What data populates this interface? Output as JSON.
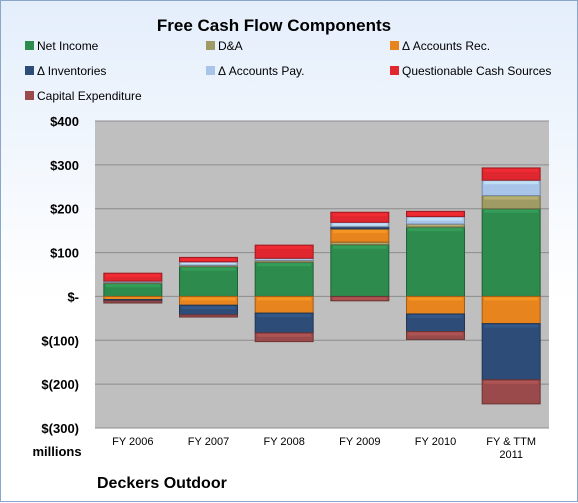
{
  "chart_data": {
    "type": "bar",
    "stacked": true,
    "title": "Free Cash Flow Components",
    "categories": [
      "FY 2006",
      "FY 2007",
      "FY 2008",
      "FY 2009",
      "FY 2010",
      "FY & TTM 2011"
    ],
    "y_tick_labels": [
      "$400",
      "$300",
      "$200",
      "$100",
      "$-",
      "$(100)",
      "$(200)",
      "$(300)"
    ],
    "ylim": [
      -300,
      400
    ],
    "y_unit_label": "millions",
    "grid": true,
    "legend_position": "top",
    "series": [
      {
        "name": "Net Income",
        "color": "#2e8b4e",
        "values": [
          30,
          68,
          78,
          118,
          158,
          200
        ]
      },
      {
        "name": "D&A",
        "color": "#a09a64",
        "values": [
          2,
          3,
          4,
          6,
          7,
          30
        ]
      },
      {
        "name": "Δ Accounts Rec.",
        "color": "#e8841e",
        "values": [
          -7,
          -20,
          -38,
          30,
          -40,
          -62
        ]
      },
      {
        "name": "Δ Inventories",
        "color": "#2d4d78",
        "values": [
          -3,
          -22,
          -45,
          5,
          -40,
          -128
        ]
      },
      {
        "name": "Δ Accounts Pay.",
        "color": "#a8c4e8",
        "values": [
          3,
          8,
          5,
          10,
          17,
          35
        ]
      },
      {
        "name": "Questionable Cash Sources",
        "color": "#e0262e",
        "values": [
          18,
          10,
          30,
          23,
          12,
          28
        ]
      },
      {
        "name": "Capital Expenditure",
        "color": "#9a4a4a",
        "values": [
          -5,
          -5,
          -20,
          -10,
          -18,
          -55
        ]
      }
    ]
  },
  "footer_label": "Deckers Outdoor"
}
